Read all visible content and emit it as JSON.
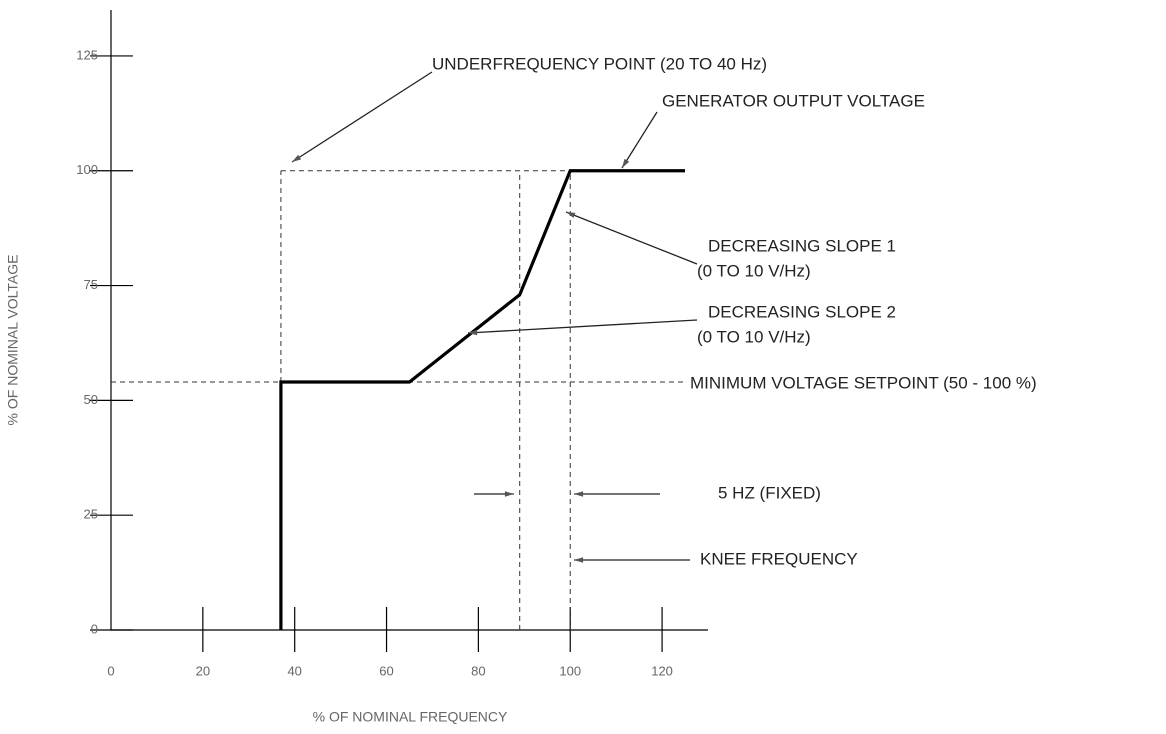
{
  "chart_data": {
    "type": "line",
    "xlabel": "% OF NOMINAL FREQUENCY",
    "ylabel": "% OF NOMINAL VOLTAGE",
    "x": [
      37,
      37,
      65,
      89,
      100,
      125
    ],
    "series": [
      {
        "name": "GENERATOR OUTPUT VOLTAGE",
        "color": "#000000",
        "values": [
          0,
          54,
          54,
          73,
          100,
          100
        ]
      }
    ],
    "xlim": [
      0,
      130
    ],
    "ylim": [
      0,
      135
    ],
    "xticks": [
      0,
      20,
      40,
      60,
      80,
      100,
      120
    ],
    "yticks": [
      0,
      25,
      50,
      75,
      100,
      125
    ],
    "reference_lines": [
      {
        "x": [
          37,
          100
        ],
        "y": [
          100,
          100
        ]
      },
      {
        "x": [
          0,
          125
        ],
        "y": [
          54,
          54
        ]
      },
      {
        "x": [
          37,
          37
        ],
        "y": [
          54,
          100
        ]
      },
      {
        "x": [
          89,
          89
        ],
        "y": [
          0,
          100
        ]
      },
      {
        "x": [
          100,
          100
        ],
        "y": [
          0,
          100
        ]
      }
    ],
    "annotations": [
      "UNDERFREQUENCY POINT (20 TO 40 Hz)",
      "GENERATOR OUTPUT VOLTAGE",
      "DECREASING SLOPE 1",
      "(0 TO 10 V/Hz)",
      "DECREASING SLOPE 2",
      "(0 TO 10 V/Hz)",
      "MINIMUM VOLTAGE SETPOINT (50 - 100 %)",
      "5 HZ (FIXED)",
      "KNEE FREQUENCY"
    ]
  }
}
